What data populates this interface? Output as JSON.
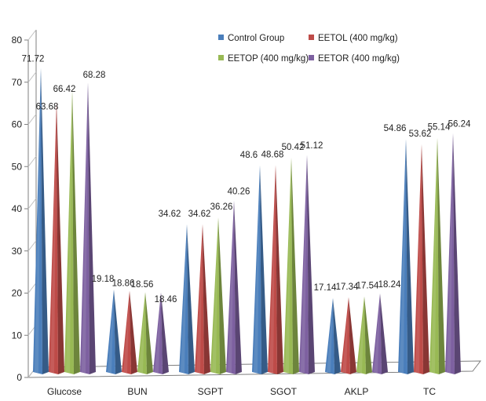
{
  "chart_data": {
    "type": "bar",
    "categories": [
      "Glucose",
      "BUN",
      "SGPT",
      "SGOT",
      "AKLP",
      "TC"
    ],
    "series": [
      {
        "name": "Control Group",
        "color": "#4a7ebb",
        "values": [
          71.72,
          19.18,
          34.62,
          48.6,
          17.14,
          54.86
        ]
      },
      {
        "name": "EETOL (400 mg/kg)",
        "color": "#be4b48",
        "values": [
          63.68,
          18.86,
          34.62,
          48.68,
          17.34,
          53.62
        ]
      },
      {
        "name": "EETOP (400 mg/kg)",
        "color": "#98b954",
        "values": [
          66.42,
          18.56,
          36.26,
          50.42,
          17.54,
          55.14
        ]
      },
      {
        "name": "EETOR (400 mg/kg)",
        "color": "#7d60a0",
        "values": [
          68.28,
          18.46,
          40.26,
          51.12,
          18.24,
          56.24
        ]
      }
    ],
    "ylim": [
      0,
      80
    ],
    "yticks": [
      "0",
      "10",
      "20",
      "30",
      "40",
      "50",
      "60",
      "70",
      "80"
    ],
    "bar_shape": "cone",
    "legend_position": "top-right"
  }
}
